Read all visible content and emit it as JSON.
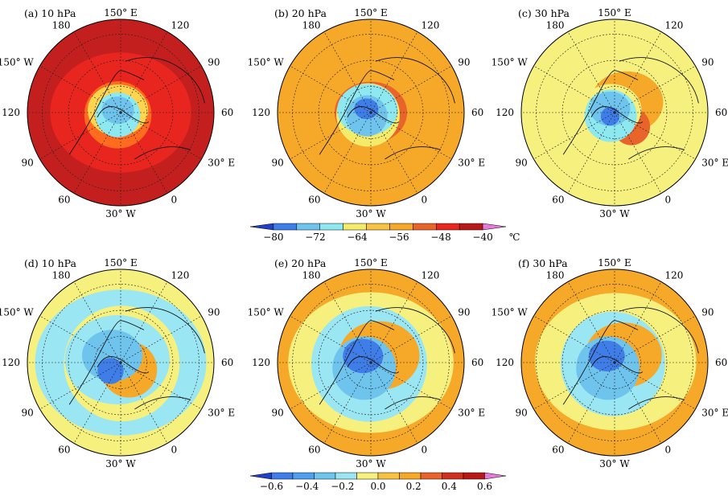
{
  "panels": [
    {
      "id": "a",
      "title": "(a)  10  hPa",
      "colorbar": 0,
      "shades": [
        [
          "#c41f1f",
          0,
          1.0
        ],
        [
          "#e8251e",
          0,
          0.7
        ],
        [
          "#ff6b1f",
          -0.05,
          0.36
        ],
        [
          "#ffd54f",
          -0.05,
          0.3
        ],
        [
          "#8ee8f0",
          -0.05,
          0.24
        ],
        [
          "#6fc4ee",
          -0.05,
          0.16
        ]
      ]
    },
    {
      "id": "b",
      "title": "(b)  20  hPa",
      "colorbar": 0,
      "shades": [
        [
          "#f6a829",
          0,
          1.0
        ],
        [
          "#e8642a",
          0.0,
          0.36
        ],
        [
          "#f5eb6b",
          -0.05,
          0.34
        ],
        [
          "#8ee8f0",
          -0.06,
          0.3
        ],
        [
          "#6fc4ee",
          -0.07,
          0.22
        ],
        [
          "#3f7ee8",
          -0.08,
          0.12
        ]
      ]
    },
    {
      "id": "c",
      "title": "(c)  30  hPa",
      "colorbar": 0,
      "shades": [
        [
          "#f6f07e",
          0,
          1.0
        ],
        [
          "#f6a829",
          0.22,
          0.36
        ],
        [
          "#e8642a",
          0.3,
          0.2
        ],
        [
          "#f6f07e",
          -0.06,
          0.3
        ],
        [
          "#8ee8f0",
          -0.07,
          0.28
        ],
        [
          "#6fc4ee",
          -0.08,
          0.2
        ],
        [
          "#3f7ee8",
          -0.08,
          0.1
        ]
      ]
    },
    {
      "id": "d",
      "title": "(d)  10  hPa",
      "colorbar": 1,
      "shades": [
        [
          "#f6f07e",
          0,
          1.0
        ],
        [
          "#9ae6f2",
          0.0,
          0.85
        ],
        [
          "#f6f07e",
          0.02,
          0.62
        ],
        [
          "#9ae6f2",
          -0.06,
          0.52
        ],
        [
          "#f6a829",
          0.15,
          0.3
        ],
        [
          "#6fc4ee",
          -0.15,
          0.3
        ],
        [
          "#3f7ee8",
          -0.18,
          0.14
        ]
      ]
    },
    {
      "id": "e",
      "title": "(e)  20  hPa",
      "colorbar": 1,
      "shades": [
        [
          "#f6a829",
          0,
          1.0
        ],
        [
          "#f6f07e",
          0.0,
          0.82
        ],
        [
          "#9ae6f2",
          -0.03,
          0.62
        ],
        [
          "#f6a829",
          0.15,
          0.4
        ],
        [
          "#6fc4ee",
          -0.12,
          0.34
        ],
        [
          "#3f7ee8",
          -0.14,
          0.2
        ]
      ]
    },
    {
      "id": "f",
      "title": "(f)  30  hPa",
      "colorbar": 1,
      "shades": [
        [
          "#f6a829",
          0,
          1.0
        ],
        [
          "#f6f07e",
          0.02,
          0.8
        ],
        [
          "#9ae6f2",
          -0.03,
          0.56
        ],
        [
          "#f6a829",
          0.16,
          0.38
        ],
        [
          "#6fc4ee",
          -0.12,
          0.34
        ],
        [
          "#3f7ee8",
          -0.14,
          0.18
        ]
      ]
    }
  ],
  "lon_labels": [
    "150° E",
    "120",
    "90",
    "60",
    "30° E",
    "0",
    "30° W",
    "60",
    "90",
    "120",
    "150° W",
    "180"
  ],
  "colorbars": [
    {
      "ticks": [
        "−80",
        "−72",
        "−64",
        "−56",
        "−48",
        "−40"
      ],
      "unit": "℃",
      "colors": [
        "#2040c8",
        "#3f7ee8",
        "#6fc4ee",
        "#8ee8f0",
        "#f5eb6b",
        "#f6c342",
        "#f6a829",
        "#e8642a",
        "#e8251e",
        "#b81818",
        "#e87ad8"
      ]
    },
    {
      "ticks": [
        "−0.6",
        "−0.4",
        "−0.2",
        "0.0",
        "0.2",
        "0.4",
        "0.6"
      ],
      "unit": "",
      "colors": [
        "#2040c8",
        "#3f7ee8",
        "#4fa0f0",
        "#6fc4ee",
        "#9ae6f2",
        "#f6f07e",
        "#f6c342",
        "#f6a829",
        "#e8642a",
        "#d03020",
        "#b81818",
        "#e87ad8"
      ]
    }
  ]
}
